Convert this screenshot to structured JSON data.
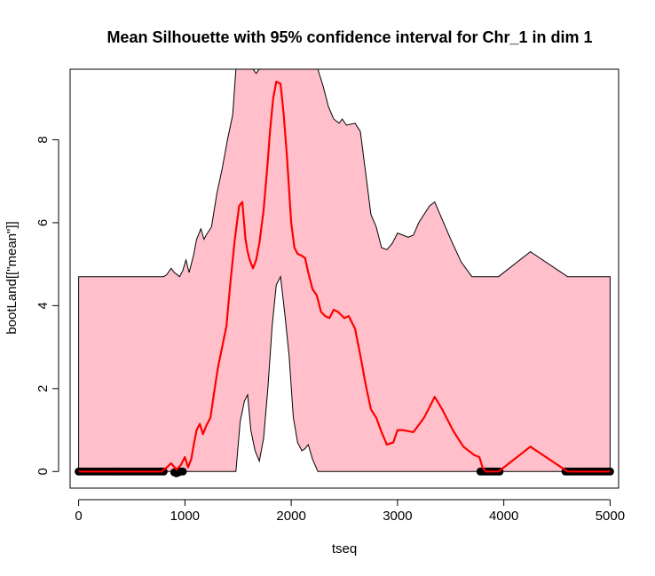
{
  "chart_data": {
    "type": "line",
    "title": "Mean Silhouette with 95% confidence interval for Chr_1 in dim 1",
    "xlabel": "tseq",
    "ylabel": "bootLand[[\"mean\"]]",
    "xlim": [
      -80,
      5080
    ],
    "ylim": [
      -0.4,
      9.7
    ],
    "xticks": [
      0,
      1000,
      2000,
      3000,
      4000,
      5000
    ],
    "yticks": [
      0,
      2,
      4,
      6,
      8
    ],
    "grid": false,
    "legend": "none",
    "colors": {
      "band_fill": "#FFC0CB",
      "band_stroke": "#000000",
      "mean_line": "#FF0000",
      "points": "#000000"
    },
    "series": [
      {
        "role": "confidence-band-upper",
        "x": [
          0,
          800,
          830,
          870,
          900,
          950,
          980,
          1010,
          1040,
          1080,
          1110,
          1150,
          1180,
          1200,
          1250,
          1300,
          1350,
          1400,
          1450,
          1480,
          1530,
          1580,
          1620,
          1640,
          1670,
          1700,
          1750,
          1800,
          1850,
          1880,
          1920,
          2000,
          2100,
          2150,
          2200,
          2250,
          2300,
          2350,
          2400,
          2450,
          2480,
          2520,
          2600,
          2650,
          2700,
          2750,
          2800,
          2850,
          2900,
          2950,
          3000,
          3050,
          3100,
          3150,
          3200,
          3300,
          3350,
          3400,
          3450,
          3500,
          3600,
          3700,
          3750,
          3800,
          3850,
          3900,
          3950,
          4250,
          4600,
          5000
        ],
        "y": [
          4.7,
          4.7,
          4.75,
          4.9,
          4.8,
          4.7,
          4.85,
          5.1,
          4.8,
          5.2,
          5.6,
          5.85,
          5.6,
          5.7,
          5.9,
          6.7,
          7.3,
          8.0,
          8.6,
          9.7,
          9.7,
          9.7,
          9.7,
          9.7,
          9.6,
          9.7,
          9.7,
          9.7,
          9.7,
          9.7,
          9.7,
          9.7,
          9.7,
          9.7,
          9.7,
          9.7,
          9.3,
          8.8,
          8.5,
          8.4,
          8.5,
          8.35,
          8.4,
          8.2,
          7.2,
          6.2,
          5.9,
          5.4,
          5.35,
          5.5,
          5.75,
          5.7,
          5.65,
          5.7,
          6.0,
          6.4,
          6.5,
          6.2,
          5.9,
          5.6,
          5.05,
          4.7,
          4.7,
          4.7,
          4.7,
          4.7,
          4.7,
          5.3,
          4.7,
          4.7
        ]
      },
      {
        "role": "confidence-band-lower",
        "x": [
          0,
          1480,
          1520,
          1560,
          1590,
          1620,
          1660,
          1700,
          1740,
          1780,
          1820,
          1860,
          1900,
          1940,
          1980,
          2020,
          2060,
          2100,
          2130,
          2160,
          2200,
          2250,
          5000
        ],
        "y": [
          0,
          0,
          1.2,
          1.7,
          1.85,
          1.0,
          0.5,
          0.25,
          0.8,
          2.0,
          3.5,
          4.5,
          4.7,
          3.8,
          2.8,
          1.3,
          0.7,
          0.5,
          0.55,
          0.65,
          0.3,
          0,
          0
        ]
      },
      {
        "role": "mean",
        "x": [
          0,
          780,
          830,
          870,
          920,
          960,
          1000,
          1030,
          1060,
          1080,
          1110,
          1140,
          1170,
          1200,
          1240,
          1280,
          1310,
          1350,
          1390,
          1430,
          1470,
          1510,
          1540,
          1570,
          1590,
          1610,
          1640,
          1670,
          1700,
          1740,
          1780,
          1800,
          1830,
          1860,
          1900,
          1930,
          1960,
          2000,
          2030,
          2060,
          2100,
          2130,
          2160,
          2200,
          2240,
          2280,
          2320,
          2360,
          2400,
          2440,
          2480,
          2500,
          2540,
          2600,
          2650,
          2700,
          2750,
          2800,
          2850,
          2900,
          2960,
          3000,
          3050,
          3150,
          3250,
          3350,
          3420,
          3520,
          3620,
          3720,
          3770,
          3800,
          3830,
          3900,
          3950,
          4250,
          4600,
          5000
        ],
        "y": [
          0,
          0,
          0.1,
          0.2,
          0.05,
          0.15,
          0.35,
          0.1,
          0.3,
          0.6,
          1.0,
          1.15,
          0.9,
          1.1,
          1.3,
          2.0,
          2.5,
          3.0,
          3.5,
          4.6,
          5.6,
          6.4,
          6.5,
          5.6,
          5.3,
          5.1,
          4.9,
          5.1,
          5.5,
          6.3,
          7.5,
          8.2,
          9.0,
          9.4,
          9.35,
          8.6,
          7.6,
          6.0,
          5.4,
          5.25,
          5.2,
          5.15,
          4.8,
          4.4,
          4.25,
          3.85,
          3.75,
          3.7,
          3.9,
          3.85,
          3.75,
          3.7,
          3.75,
          3.45,
          2.8,
          2.1,
          1.5,
          1.3,
          0.95,
          0.65,
          0.7,
          1.0,
          1.0,
          0.95,
          1.3,
          1.8,
          1.5,
          1.0,
          0.6,
          0.4,
          0.35,
          0.1,
          0,
          0,
          0,
          0.6,
          0,
          0
        ]
      },
      {
        "role": "zero-points",
        "x": [
          0,
          20,
          40,
          60,
          80,
          100,
          120,
          140,
          160,
          180,
          200,
          220,
          240,
          260,
          280,
          300,
          320,
          340,
          360,
          380,
          400,
          420,
          440,
          460,
          480,
          500,
          520,
          540,
          560,
          580,
          600,
          620,
          640,
          660,
          680,
          700,
          720,
          740,
          760,
          780,
          800,
          900,
          920,
          940,
          960,
          980,
          3780,
          3800,
          3820,
          3840,
          3860,
          3880,
          3900,
          3920,
          3940,
          3960,
          4580,
          4600,
          4620,
          4640,
          4660,
          4680,
          4700,
          4720,
          4740,
          4760,
          4780,
          4800,
          4820,
          4840,
          4860,
          4880,
          4900,
          4920,
          4940,
          4960,
          4980,
          5000
        ],
        "y": [
          0,
          0,
          0,
          0,
          0,
          0,
          0,
          0,
          0,
          0,
          0,
          0,
          0,
          0,
          0,
          0,
          0,
          0,
          0,
          0,
          0,
          0,
          0,
          0,
          0,
          0,
          0,
          0,
          0,
          0,
          0,
          0,
          0,
          0,
          0,
          0,
          0,
          0,
          0,
          0,
          0,
          -0.02,
          -0.04,
          -0.02,
          0,
          0,
          0,
          0,
          0,
          0,
          0,
          0,
          0,
          0,
          0,
          0,
          0,
          0,
          0,
          0,
          0,
          0,
          0,
          0,
          0,
          0,
          0,
          0,
          0,
          0,
          0,
          0,
          0,
          0,
          0,
          0,
          0,
          0
        ]
      }
    ]
  }
}
